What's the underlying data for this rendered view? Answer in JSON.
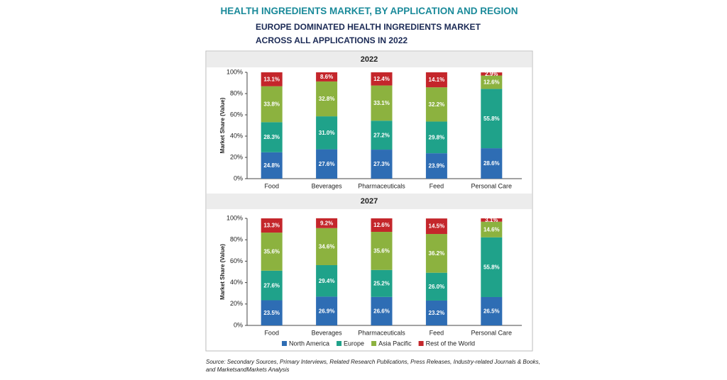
{
  "header": {
    "title": "HEALTH INGREDIENTS MARKET, BY APPLICATION AND REGION",
    "subtitle": "EUROPE DOMINATED HEALTH INGREDIENTS MARKET ACROSS ALL APPLICATIONS IN 2022"
  },
  "source": "Source: Secondary Sources, Primary Interviews, Related Research Publications, Press Releases, Industry-related Journals & Books, and MarketsandMarkets Analysis",
  "chart_data": [
    {
      "type": "stacked_bar",
      "title": "2022",
      "ylabel": "Market Share (Value)",
      "categories": [
        "Food",
        "Beverages",
        "Pharmaceuticals",
        "Feed",
        "Personal Care"
      ],
      "ylim": [
        0,
        100
      ],
      "yticks": [
        {
          "value": 0,
          "label": "0%"
        },
        {
          "value": 20,
          "label": "20%"
        },
        {
          "value": 40,
          "label": "40%"
        },
        {
          "value": 60,
          "label": "60%"
        },
        {
          "value": 80,
          "label": "80%"
        },
        {
          "value": 100,
          "label": "100%"
        }
      ],
      "series": [
        {
          "name": "North America",
          "color": "#2e6db4",
          "values": [
            24.8,
            27.6,
            27.3,
            23.9,
            28.6
          ],
          "value_labels": [
            "24.8%",
            "27.6%",
            "27.3%",
            "23.9%",
            "28.6%"
          ]
        },
        {
          "name": "Europe",
          "color": "#1fa28a",
          "values": [
            28.3,
            31.0,
            27.2,
            29.8,
            55.8
          ],
          "value_labels": [
            "28.3%",
            "31.0%",
            "27.2%",
            "29.8%",
            "55.8%"
          ]
        },
        {
          "name": "Asia Pacific",
          "color": "#8cb23f",
          "values": [
            33.8,
            32.8,
            33.1,
            32.2,
            12.6
          ],
          "value_labels": [
            "33.8%",
            "32.8%",
            "33.1%",
            "32.2%",
            "12.6%"
          ]
        },
        {
          "name": "Rest of the World",
          "color": "#c4262b",
          "values": [
            13.1,
            8.6,
            12.4,
            14.1,
            2.9
          ],
          "value_labels": [
            "13.1%",
            "8.6%",
            "12.4%",
            "14.1%",
            "2.9%"
          ]
        }
      ]
    },
    {
      "type": "stacked_bar",
      "title": "2027",
      "ylabel": "Market Share (Value)",
      "categories": [
        "Food",
        "Beverages",
        "Pharmaceuticals",
        "Feed",
        "Personal Care"
      ],
      "ylim": [
        0,
        100
      ],
      "yticks": [
        {
          "value": 0,
          "label": "0%"
        },
        {
          "value": 20,
          "label": "20%"
        },
        {
          "value": 40,
          "label": "40%"
        },
        {
          "value": 60,
          "label": "60%"
        },
        {
          "value": 80,
          "label": "80%"
        },
        {
          "value": 100,
          "label": "100%"
        }
      ],
      "legend": "bottom",
      "series": [
        {
          "name": "North America",
          "color": "#2e6db4",
          "values": [
            23.5,
            26.9,
            26.6,
            23.2,
            26.5
          ],
          "value_labels": [
            "23.5%",
            "26.9%",
            "26.6%",
            "23.2%",
            "26.5%"
          ]
        },
        {
          "name": "Europe",
          "color": "#1fa28a",
          "values": [
            27.6,
            29.4,
            25.2,
            26.0,
            55.8
          ],
          "value_labels": [
            "27.6%",
            "29.4%",
            "25.2%",
            "26.0%",
            "55.8%"
          ]
        },
        {
          "name": "Asia Pacific",
          "color": "#8cb23f",
          "values": [
            35.6,
            34.6,
            35.6,
            36.2,
            14.6
          ],
          "value_labels": [
            "35.6%",
            "34.6%",
            "35.6%",
            "36.2%",
            "14.6%"
          ]
        },
        {
          "name": "Rest of the World",
          "color": "#c4262b",
          "values": [
            13.3,
            9.2,
            12.6,
            14.5,
            3.1
          ],
          "value_labels": [
            "13.3%",
            "9.2%",
            "12.6%",
            "14.5%",
            "3.1%"
          ]
        }
      ]
    }
  ]
}
